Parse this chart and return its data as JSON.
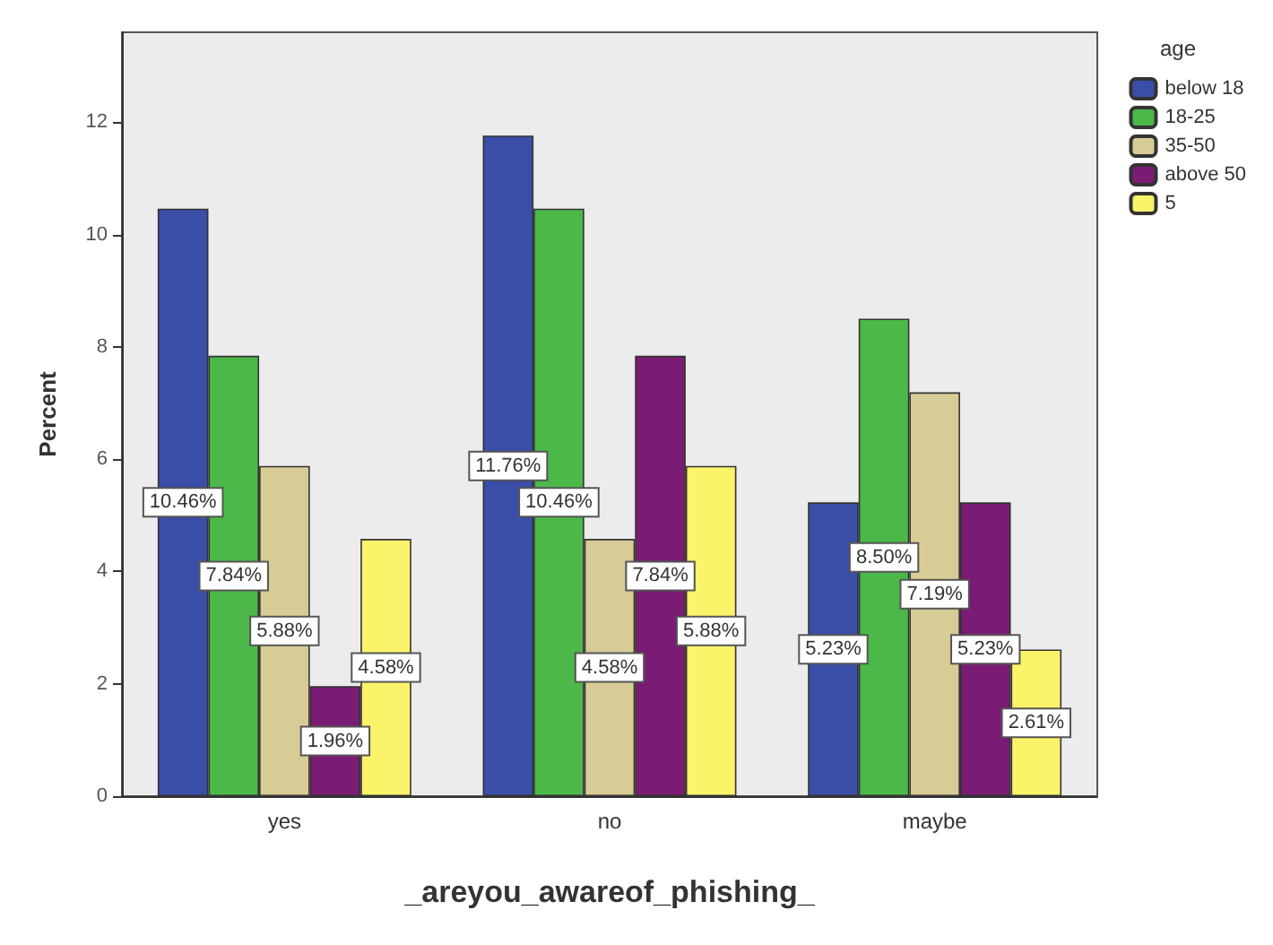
{
  "chart_data": {
    "type": "bar",
    "xlabel": "_areyou_awareof_phishing_",
    "ylabel": "Percent",
    "legend_title": "age",
    "categories": [
      "yes",
      "no",
      "maybe"
    ],
    "series": [
      {
        "name": "below 18",
        "color": "#3a4ea8",
        "values": [
          10.46,
          11.76,
          5.23
        ],
        "value_labels": [
          "10.46%",
          "11.76%",
          "5.23%"
        ]
      },
      {
        "name": "18-25",
        "color": "#4cb849",
        "values": [
          7.84,
          10.46,
          8.5
        ],
        "value_labels": [
          "7.84%",
          "10.46%",
          "8.50%"
        ]
      },
      {
        "name": "35-50",
        "color": "#d8cc96",
        "values": [
          5.88,
          4.58,
          7.19
        ],
        "value_labels": [
          "5.88%",
          "4.58%",
          "7.19%"
        ]
      },
      {
        "name": "above 50",
        "color": "#7a1b74",
        "values": [
          1.96,
          7.84,
          5.23
        ],
        "value_labels": [
          "1.96%",
          "7.84%",
          "5.23%"
        ]
      },
      {
        "name": "5",
        "color": "#fbf36a",
        "values": [
          4.58,
          5.88,
          2.61
        ],
        "value_labels": [
          "4.58%",
          "5.88%",
          "2.61%"
        ]
      }
    ],
    "ylim": [
      0,
      13.6
    ],
    "yticks": [
      0,
      2,
      4,
      6,
      8,
      10,
      12
    ],
    "grid": false,
    "legend": "top right"
  }
}
